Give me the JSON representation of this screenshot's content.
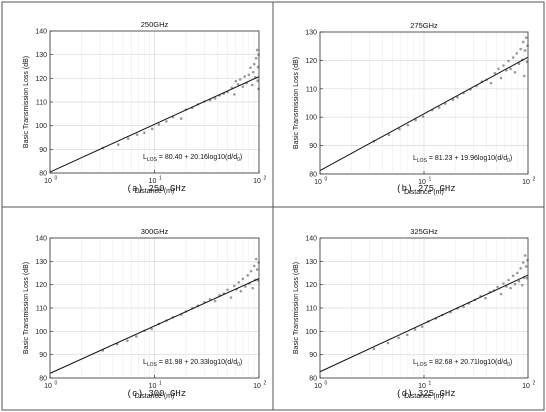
{
  "chart_data": [
    {
      "type": "scatter",
      "title": "250GHz",
      "caption": "(a) 250 GHz",
      "xlabel": "Distance (m)",
      "ylabel": "Basic Transmission Loss (dB)",
      "xscale": "log",
      "xlim": [
        1,
        100
      ],
      "ylim": [
        80,
        140
      ],
      "xticks": [
        1,
        10,
        100
      ],
      "xtick_labels": [
        "10",
        "10",
        "10"
      ],
      "xtick_exponents": [
        "0",
        "1",
        "2"
      ],
      "yticks": [
        80,
        90,
        100,
        110,
        120,
        130,
        140
      ],
      "grid": true,
      "fit": {
        "intercept": 80.4,
        "slope": 20.16
      },
      "equation": {
        "main": "L",
        "sub": "LOS",
        "text": " = 80.40 + 20.16log10(d/d",
        "sub2": "0",
        "end": ")"
      },
      "series": [
        {
          "values": [
            [
              3.2,
              90.6
            ],
            [
              4.5,
              92.0
            ],
            [
              5.6,
              94.5
            ],
            [
              6.8,
              96.2
            ],
            [
              8.0,
              97.0
            ],
            [
              9.5,
              98.6
            ],
            [
              11,
              100.5
            ],
            [
              13,
              101.8
            ],
            [
              15,
              103.6
            ],
            [
              18,
              103.0
            ],
            [
              20,
              106.8
            ],
            [
              23,
              107.5
            ],
            [
              26,
              109.0
            ],
            [
              30,
              110.2
            ],
            [
              34,
              110.8
            ],
            [
              38,
              111.5
            ],
            [
              42,
              112.8
            ],
            [
              46,
              113.5
            ],
            [
              50,
              114.2
            ],
            [
              55,
              116.0
            ],
            [
              58,
              113.2
            ],
            [
              60,
              118.8
            ],
            [
              63,
              117.5
            ],
            [
              66,
              119.5
            ],
            [
              70,
              116.5
            ],
            [
              73,
              120.8
            ],
            [
              76,
              118.0
            ],
            [
              80,
              121.5
            ],
            [
              83,
              124.5
            ],
            [
              86,
              117.2
            ],
            [
              88,
              122.6
            ],
            [
              90,
              126.0
            ],
            [
              92,
              120.5
            ],
            [
              94,
              128.5
            ],
            [
              96,
              132.0
            ],
            [
              97,
              119.0
            ],
            [
              98,
              124.8
            ],
            [
              99,
              115.5
            ],
            [
              99,
              130.0
            ]
          ]
        }
      ]
    },
    {
      "type": "scatter",
      "title": "275GHz",
      "caption": "(b) 275 GHz",
      "xlabel": "Distance (m)",
      "ylabel": "Basic Transmission Loss (dB)",
      "xscale": "log",
      "xlim": [
        1,
        100
      ],
      "ylim": [
        80,
        130
      ],
      "xticks": [
        1,
        10,
        100
      ],
      "xtick_labels": [
        "10",
        "10",
        "10"
      ],
      "xtick_exponents": [
        "0",
        "1",
        "2"
      ],
      "yticks": [
        80,
        90,
        100,
        110,
        120,
        130
      ],
      "grid": true,
      "fit": {
        "intercept": 81.23,
        "slope": 19.96
      },
      "equation": {
        "main": "L",
        "sub": "LOS",
        "text": " = 81.23 + 19.96log10(d/d",
        "sub2": "0",
        "end": ")"
      },
      "series": [
        {
          "values": [
            [
              3.3,
              91.5
            ],
            [
              4.6,
              93.8
            ],
            [
              5.8,
              95.8
            ],
            [
              7.0,
              97.2
            ],
            [
              8.3,
              99.0
            ],
            [
              9.8,
              100.2
            ],
            [
              12,
              102.5
            ],
            [
              14,
              103.4
            ],
            [
              16,
              104.8
            ],
            [
              19,
              106.2
            ],
            [
              21,
              107.0
            ],
            [
              24,
              108.5
            ],
            [
              28,
              109.8
            ],
            [
              32,
              111.0
            ],
            [
              36,
              112.5
            ],
            [
              40,
              113.2
            ],
            [
              44,
              112.0
            ],
            [
              48,
              115.5
            ],
            [
              52,
              117.0
            ],
            [
              55,
              113.8
            ],
            [
              58,
              118.2
            ],
            [
              62,
              116.5
            ],
            [
              65,
              119.8
            ],
            [
              68,
              117.0
            ],
            [
              72,
              121.0
            ],
            [
              75,
              115.8
            ],
            [
              78,
              122.5
            ],
            [
              82,
              118.8
            ],
            [
              85,
              124.0
            ],
            [
              88,
              120.2
            ],
            [
              90,
              126.5
            ],
            [
              92,
              114.5
            ],
            [
              94,
              123.5
            ],
            [
              96,
              128.0
            ],
            [
              98,
              119.5
            ],
            [
              99,
              125.2
            ]
          ]
        }
      ]
    },
    {
      "type": "scatter",
      "title": "300GHz",
      "caption": "(c) 300 GHz",
      "xlabel": "Distance (m)",
      "ylabel": "Basic Transmission Loss (dB)",
      "xscale": "log",
      "xlim": [
        1,
        100
      ],
      "ylim": [
        80,
        140
      ],
      "xticks": [
        1,
        10,
        100
      ],
      "xtick_labels": [
        "10",
        "10",
        "10"
      ],
      "xtick_exponents": [
        "0",
        "1",
        "2"
      ],
      "yticks": [
        80,
        90,
        100,
        110,
        120,
        130,
        140
      ],
      "grid": true,
      "fit": {
        "intercept": 81.98,
        "slope": 20.33
      },
      "equation": {
        "main": "L",
        "sub": "LOS",
        "text": " = 81.98 + 20.33log10(d/d",
        "sub2": "0",
        "end": ")"
      },
      "series": [
        {
          "values": [
            [
              3.2,
              91.8
            ],
            [
              4.4,
              94.5
            ],
            [
              5.5,
              96.0
            ],
            [
              6.7,
              97.8
            ],
            [
              8.0,
              100.2
            ],
            [
              9.4,
              101.0
            ],
            [
              11,
              103.2
            ],
            [
              13,
              104.6
            ],
            [
              15,
              106.0
            ],
            [
              18,
              107.2
            ],
            [
              20,
              108.5
            ],
            [
              23,
              110.0
            ],
            [
              26,
              111.0
            ],
            [
              30,
              112.5
            ],
            [
              34,
              113.8
            ],
            [
              38,
              113.0
            ],
            [
              42,
              115.5
            ],
            [
              46,
              116.2
            ],
            [
              50,
              117.8
            ],
            [
              54,
              114.5
            ],
            [
              58,
              119.5
            ],
            [
              61,
              118.0
            ],
            [
              64,
              121.0
            ],
            [
              67,
              117.2
            ],
            [
              70,
              122.5
            ],
            [
              74,
              119.2
            ],
            [
              78,
              124.0
            ],
            [
              81,
              120.5
            ],
            [
              84,
              125.8
            ],
            [
              87,
              118.5
            ],
            [
              90,
              128.0
            ],
            [
              92,
              122.0
            ],
            [
              94,
              131.0
            ],
            [
              96,
              126.5
            ],
            [
              98,
              121.8
            ],
            [
              99,
              129.5
            ]
          ]
        }
      ]
    },
    {
      "type": "scatter",
      "title": "325GHz",
      "caption": "(d) 325 GHz",
      "xlabel": "Distance (m)",
      "ylabel": "Basic Transmission Loss (dB)",
      "xscale": "log",
      "xlim": [
        1,
        100
      ],
      "ylim": [
        80,
        140
      ],
      "xticks": [
        1,
        10,
        100
      ],
      "xtick_labels": [
        "10",
        "10",
        "10"
      ],
      "xtick_exponents": [
        "0",
        "1",
        "2"
      ],
      "yticks": [
        80,
        90,
        100,
        110,
        120,
        130,
        140
      ],
      "grid": true,
      "fit": {
        "intercept": 82.68,
        "slope": 20.71
      },
      "equation": {
        "main": "L",
        "sub": "LOS",
        "text": " = 82.68 + 20.71log10(d/d",
        "sub2": "0",
        "end": ")"
      },
      "series": [
        {
          "values": [
            [
              3.3,
              92.5
            ],
            [
              4.5,
              95.0
            ],
            [
              5.7,
              97.2
            ],
            [
              6.9,
              98.5
            ],
            [
              8.2,
              100.8
            ],
            [
              9.6,
              102.0
            ],
            [
              11,
              104.2
            ],
            [
              13,
              105.5
            ],
            [
              15,
              107.0
            ],
            [
              18,
              108.2
            ],
            [
              21,
              109.8
            ],
            [
              24,
              110.5
            ],
            [
              27,
              112.0
            ],
            [
              31,
              113.5
            ],
            [
              35,
              115.0
            ],
            [
              39,
              114.2
            ],
            [
              43,
              116.8
            ],
            [
              47,
              117.5
            ],
            [
              51,
              119.0
            ],
            [
              55,
              116.0
            ],
            [
              58,
              120.5
            ],
            [
              62,
              119.2
            ],
            [
              65,
              122.0
            ],
            [
              68,
              118.5
            ],
            [
              72,
              123.8
            ],
            [
              75,
              120.2
            ],
            [
              79,
              125.0
            ],
            [
              82,
              121.5
            ],
            [
              85,
              127.0
            ],
            [
              88,
              119.8
            ],
            [
              90,
              129.5
            ],
            [
              92,
              123.0
            ],
            [
              94,
              132.5
            ],
            [
              96,
              127.8
            ],
            [
              98,
              122.8
            ],
            [
              99,
              130.5
            ]
          ]
        }
      ]
    }
  ]
}
